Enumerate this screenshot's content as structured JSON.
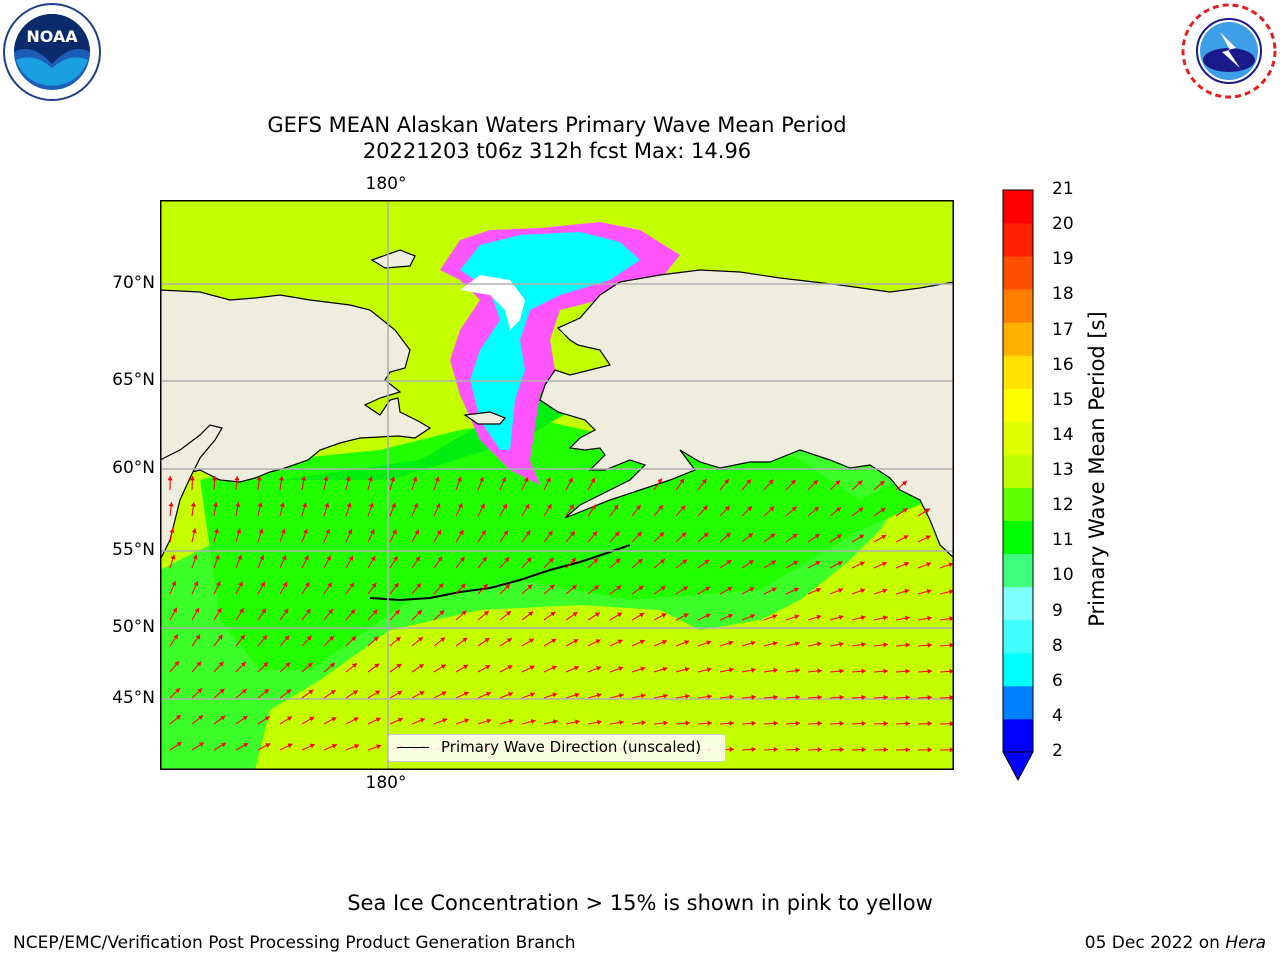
{
  "header": {
    "title_line1": "GEFS MEAN Alaskan Waters Primary Wave Mean Period",
    "title_line2": "20221203 t06z 312h fcst   Max: 14.96"
  },
  "logos": {
    "left": "noaa-logo",
    "right": "nws-logo"
  },
  "map": {
    "lat_ticks": [
      "70°N",
      "65°N",
      "60°N",
      "55°N",
      "50°N",
      "45°N"
    ],
    "lon_tick_top": "180°",
    "lon_tick_bottom": "180°",
    "land_color": "#efeddd",
    "arrow_color": "#ff0000"
  },
  "colorbar": {
    "label": "Primary Wave Mean Period [s]",
    "ticks": [
      "21",
      "20",
      "19",
      "18",
      "17",
      "16",
      "15",
      "14",
      "13",
      "12",
      "11",
      "10",
      "9",
      "8",
      "6",
      "4",
      "2"
    ],
    "colors": [
      "#0000ff",
      "#0080ff",
      "#00ffff",
      "#40ffff",
      "#80ffff",
      "#40ff80",
      "#00ff00",
      "#60ff00",
      "#c0ff00",
      "#e0ff00",
      "#ffff00",
      "#ffe000",
      "#ffb000",
      "#ff8000",
      "#ff5000",
      "#ff2000",
      "#ff0000"
    ]
  },
  "legend": {
    "label": "Primary Wave Direction (unscaled)"
  },
  "footer": {
    "note": "Sea Ice Concentration > 15% is shown in pink to yellow",
    "left": "NCEP/EMC/Verification Post Processing Product Generation Branch",
    "right_date": "05 Dec 2022 on",
    "right_host": "Hera"
  }
}
